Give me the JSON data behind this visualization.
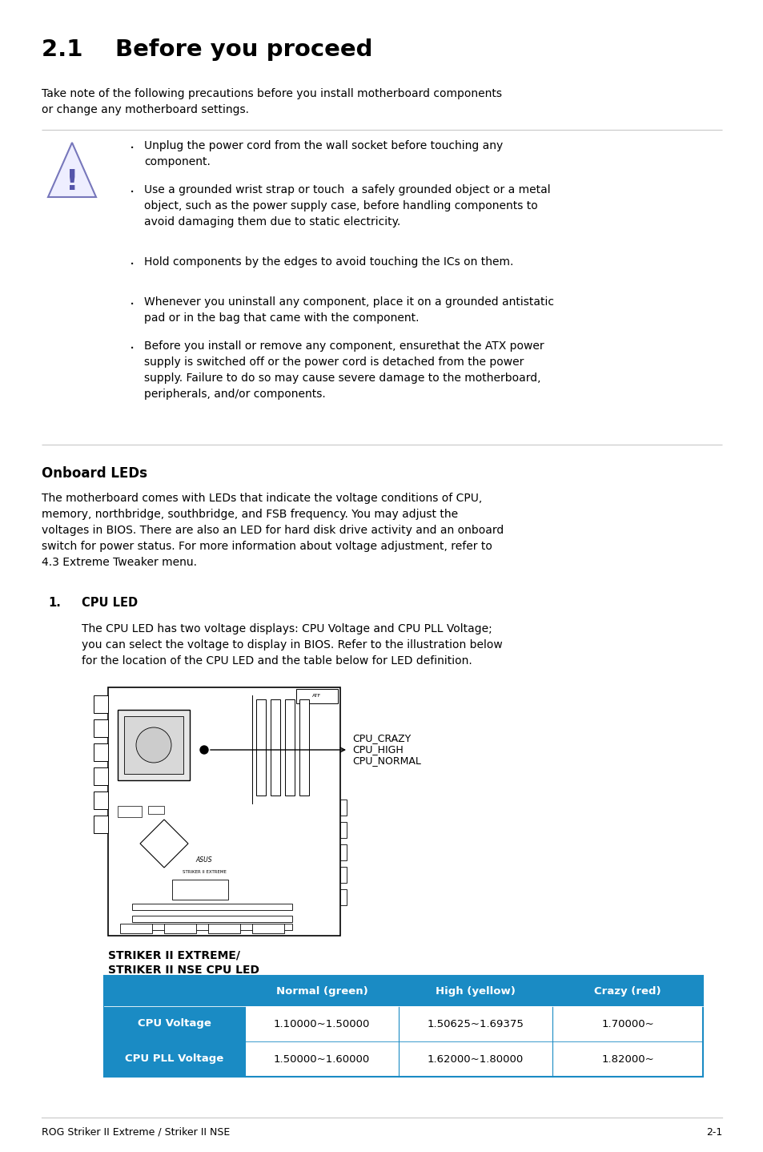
{
  "title": "2.1    Before you proceed",
  "intro_text": "Take note of the following precautions before you install motherboard components\nor change any motherboard settings.",
  "bullet_points": [
    "Unplug the power cord from the wall socket before touching any\ncomponent.",
    "Use a grounded wrist strap or touch  a safely grounded object or a metal\nobject, such as the power supply case, before handling components to\navoid damaging them due to static electricity.",
    "Hold components by the edges to avoid touching the ICs on them.",
    "Whenever you uninstall any component, place it on a grounded antistatic\npad or in the bag that came with the component.",
    "Before you install or remove any component, ensurethat the ATX power\nsupply is switched off or the power cord is detached from the power\nsupply. Failure to do so may cause severe damage to the motherboard,\nperipherals, and/or components."
  ],
  "section2_title": "Onboard LEDs",
  "section2_body": "The motherboard comes with LEDs that indicate the voltage conditions of CPU,\nmemory, northbridge, southbridge, and FSB frequency. You may adjust the\nvoltages in BIOS. There are also an LED for hard disk drive activity and an onboard\nswitch for power status. For more information about voltage adjustment, refer to\n4.3 Extreme Tweaker menu.",
  "cpu_led_num": "1.",
  "cpu_led_label": "CPU LED",
  "cpu_led_body": "The CPU LED has two voltage displays: CPU Voltage and CPU PLL Voltage;\nyou can select the voltage to display in BIOS. Refer to the illustration below\nfor the location of the CPU LED and the table below for LED definition.",
  "diagram_caption_line1": "STRIKER II EXTREME/",
  "diagram_caption_line2": "STRIKER II NSE CPU LED",
  "diagram_labels": [
    "CPU_CRAZY",
    "CPU_HIGH",
    "CPU_NORMAL"
  ],
  "table_header": [
    "",
    "Normal (green)",
    "High (yellow)",
    "Crazy (red)"
  ],
  "table_rows": [
    [
      "CPU Voltage",
      "1.10000~1.50000",
      "1.50625~1.69375",
      "1.70000~"
    ],
    [
      "CPU PLL Voltage",
      "1.50000~1.60000",
      "1.62000~1.80000",
      "1.82000~"
    ]
  ],
  "table_header_bg": "#1a8bc4",
  "table_left_col_bg": "#1a8bc4",
  "table_border_color": "#1a8bc4",
  "footer_left": "ROG Striker II Extreme / Striker II NSE",
  "footer_right": "2-1",
  "bg_color": "#ffffff",
  "text_color": "#000000",
  "header_text_color": "#ffffff",
  "line_color": "#c8c8c8"
}
